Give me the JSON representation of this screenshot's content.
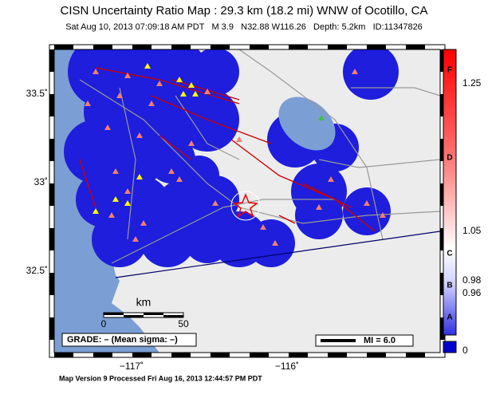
{
  "header": {
    "title": "CISN Uncertainty Ratio Map : 29.3 km (18.2 mi) WNW of Ocotillo, CA",
    "subtitle": "Sat Aug 10, 2013 07:09:18 AM PDT   M 3.9   N32.88 W116.26   Depth: 5.2km   ID:11347826"
  },
  "map": {
    "lat_labels": [
      "33.5˚",
      "33˚",
      "32.5˚"
    ],
    "lon_labels": [
      "−117˚",
      "−116˚"
    ],
    "scale": {
      "unit": "km",
      "start": "0",
      "end": "50"
    },
    "grade": "GRADE: – (Mean sigma: –)",
    "legend": "MI = 6.0"
  },
  "colorbar": {
    "grades": [
      "F",
      "D",
      "C",
      "B",
      "A"
    ],
    "labels": [
      "1.25",
      "1.05",
      "0.98",
      "0.96",
      "0"
    ]
  },
  "footer": "Map Version 9 Processed Fri Aug 16, 2013 12:44:57 PM PDT"
}
